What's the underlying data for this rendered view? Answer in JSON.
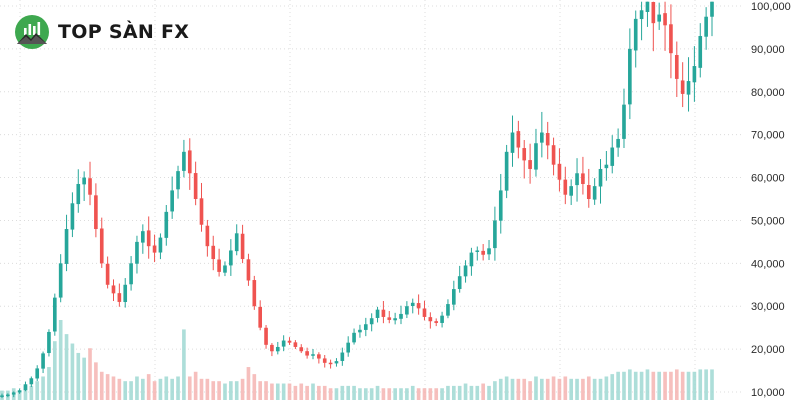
{
  "brand": {
    "name": "TOP SÀN FX",
    "logo_icon": "mountain-chart-logo-icon",
    "logo_color": "#3ea84f"
  },
  "colors": {
    "up": "#26a69a",
    "down": "#ef5350",
    "grid": "#dcdcdc",
    "volume_up": "#9fd8d2",
    "volume_down": "#f5b4b2"
  },
  "chart_data": {
    "type": "candlestick",
    "title": "",
    "xlabel": "",
    "ylabel": "",
    "ylim": [
      8500,
      101000
    ],
    "y_ticks": [
      10000,
      20000,
      30000,
      40000,
      50000,
      60000,
      70000,
      80000,
      90000,
      100000
    ],
    "y_tick_labels": [
      "10,000",
      "20,000",
      "30,000",
      "40,000",
      "50,000",
      "60,000",
      "70,000",
      "80,000",
      "90,000",
      "100,000"
    ],
    "y_axis_position": "right",
    "grid": true,
    "legend": "none",
    "series": [
      {
        "values": [
          9200,
          9400,
          9900,
          10400,
          11800,
          13200,
          15500,
          19000,
          24000,
          32000,
          40000,
          48000,
          54000,
          58500,
          60000,
          56000,
          48000,
          40000,
          35000,
          33000,
          31000,
          35000,
          40000,
          45000,
          47500,
          44000,
          42500,
          46000,
          52000,
          57000,
          61500,
          66000,
          61000,
          55000,
          49000,
          44000,
          41000,
          38000,
          39500,
          43000,
          47000,
          41000,
          36000,
          30000,
          25000,
          21000,
          19500,
          20500,
          22000,
          21500,
          20500,
          19500,
          18500,
          18800,
          17800,
          16800,
          16600,
          17200,
          19200,
          21500,
          23800,
          24500,
          25800,
          27200,
          29200,
          27500,
          26800,
          27200,
          28200,
          30000,
          30800,
          29500,
          27500,
          26500,
          26100,
          27800,
          30500,
          34000,
          37000,
          39500,
          42500,
          43000,
          42000,
          43500,
          50000,
          57000,
          66000,
          70500,
          67000,
          64000,
          62000,
          68000,
          70500,
          67500,
          63000,
          59500,
          56000,
          58000,
          61000,
          58500,
          55000,
          58000,
          62000,
          63000,
          67000,
          69000,
          77000,
          90000,
          97000,
          99000,
          101000,
          96000,
          98000,
          95500,
          89000,
          83000,
          79500,
          82500,
          86000,
          93000,
          97500,
          101000
        ]
      },
      {
        "values": [
          0.04,
          0.04,
          0.05,
          0.04,
          0.06,
          0.06,
          0.08,
          0.1,
          0.14,
          0.25,
          0.34,
          0.28,
          0.24,
          0.2,
          0.18,
          0.22,
          0.16,
          0.12,
          0.11,
          0.1,
          0.09,
          0.08,
          0.08,
          0.1,
          0.09,
          0.11,
          0.08,
          0.09,
          0.1,
          0.09,
          0.1,
          0.3,
          0.1,
          0.12,
          0.09,
          0.09,
          0.08,
          0.08,
          0.07,
          0.08,
          0.08,
          0.09,
          0.14,
          0.11,
          0.08,
          0.08,
          0.07,
          0.07,
          0.07,
          0.07,
          0.06,
          0.07,
          0.06,
          0.07,
          0.06,
          0.06,
          0.05,
          0.05,
          0.06,
          0.06,
          0.06,
          0.05,
          0.05,
          0.05,
          0.06,
          0.05,
          0.05,
          0.05,
          0.05,
          0.05,
          0.06,
          0.05,
          0.05,
          0.05,
          0.05,
          0.05,
          0.06,
          0.06,
          0.06,
          0.07,
          0.06,
          0.06,
          0.07,
          0.06,
          0.08,
          0.09,
          0.1,
          0.09,
          0.09,
          0.09,
          0.08,
          0.1,
          0.09,
          0.09,
          0.1,
          0.09,
          0.1,
          0.09,
          0.09,
          0.09,
          0.1,
          0.09,
          0.09,
          0.1,
          0.11,
          0.12,
          0.12,
          0.13,
          0.12,
          0.12,
          0.13,
          0.12,
          0.12,
          0.12,
          0.12,
          0.13,
          0.12,
          0.12,
          0.12,
          0.13,
          0.13,
          0.13
        ]
      }
    ]
  }
}
